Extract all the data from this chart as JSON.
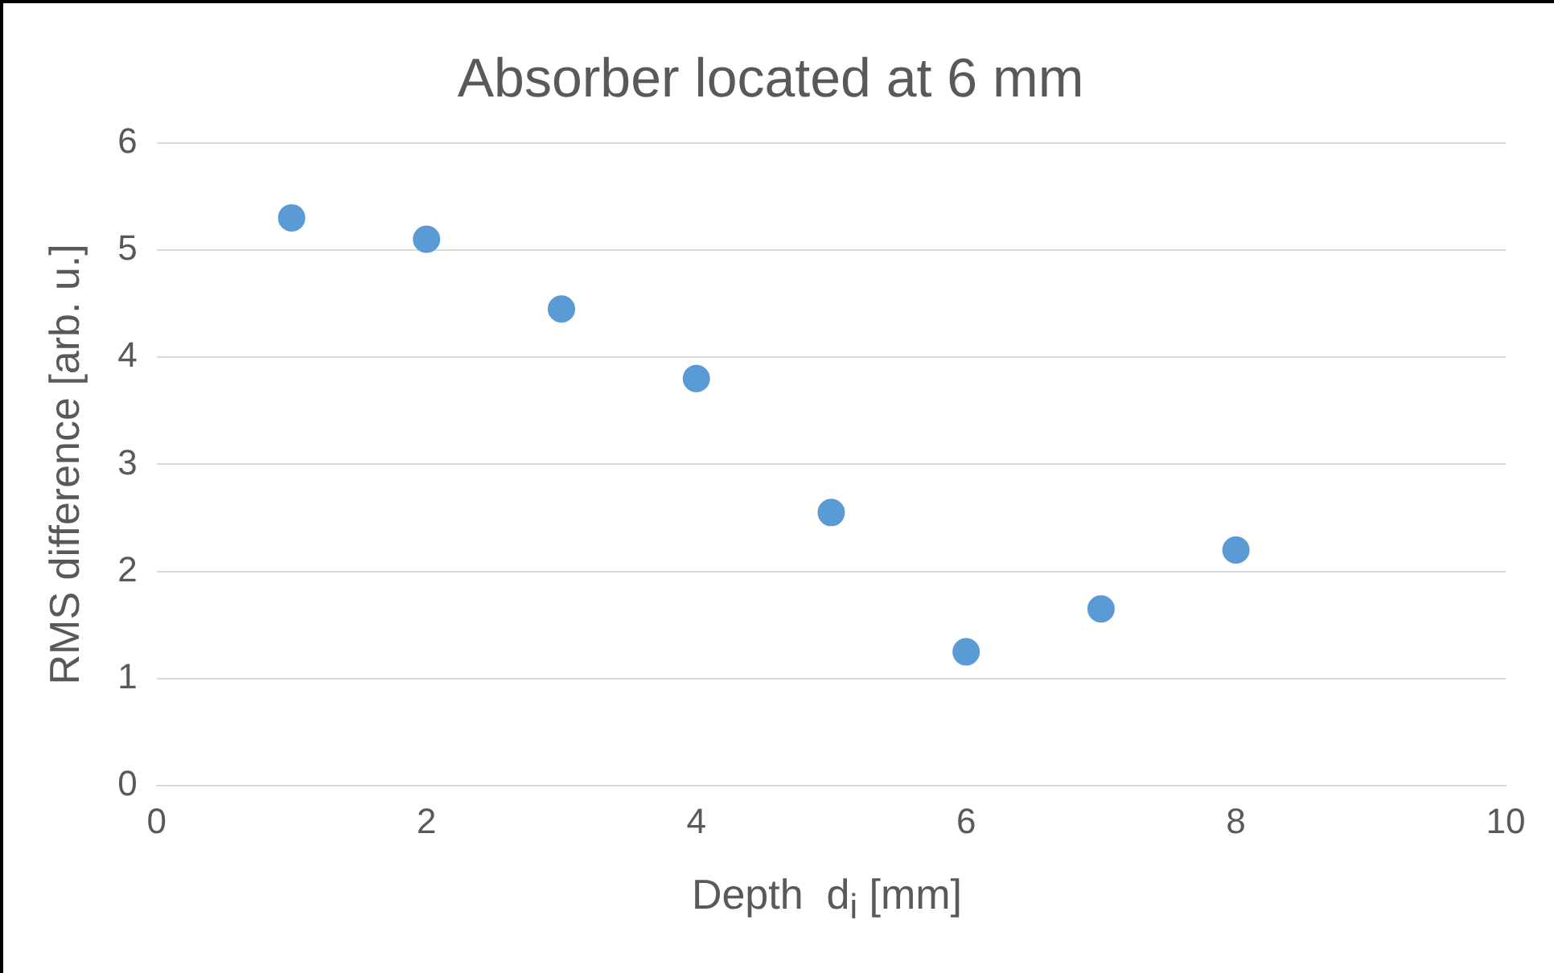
{
  "chart_data": {
    "type": "scatter",
    "title": "Absorber located at 6 mm",
    "xlabel": "Depth  d$_{i}$ [mm]",
    "ylabel": "RMS difference [arb. u.]",
    "x": [
      1,
      2,
      3,
      4,
      5,
      6,
      7,
      8
    ],
    "values": [
      5.3,
      5.1,
      4.45,
      3.8,
      2.55,
      1.25,
      1.65,
      2.2
    ],
    "color": "#5b9bd5",
    "marker": "circle",
    "grid": "y",
    "legend": false,
    "xlim": [
      0,
      10
    ],
    "xticks": [
      0,
      2,
      4,
      6,
      8,
      10
    ],
    "ylim": [
      0,
      6
    ],
    "yticks": [
      0,
      1,
      2,
      3,
      4,
      5,
      6
    ]
  }
}
